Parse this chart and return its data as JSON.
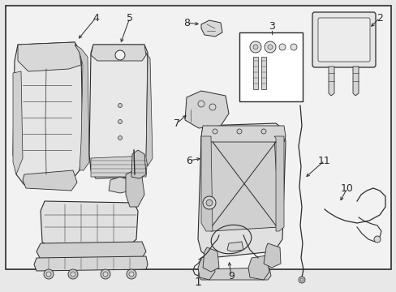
{
  "figsize": [
    4.89,
    3.6
  ],
  "dpi": 100,
  "bg_color": "#e8e8e8",
  "panel_color": "#f0f0f0",
  "line_color": "#2a2a2a",
  "fill_light": "#e8e8e8",
  "fill_mid": "#d0d0d0",
  "fill_dark": "#b8b8b8",
  "label_fs": 9,
  "border_lw": 1.0
}
